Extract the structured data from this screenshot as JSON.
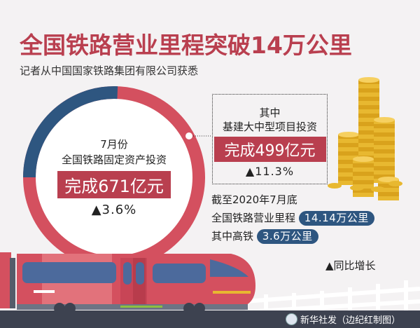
{
  "header": {
    "title": "全国铁路营业里程突破14万公里",
    "subtitle": "记者从中国国家铁路集团有限公司获悉"
  },
  "ring": {
    "line1": "7月份",
    "line2": "全国铁路固定资产投资",
    "value": "完成671亿元",
    "growth": "▲3.6%",
    "total": 671,
    "highlight_share": 499,
    "colors": {
      "main": "#d4505f",
      "share": "#2e5680"
    }
  },
  "callout": {
    "line1": "其中",
    "line2": "基建大中型项目投资",
    "value": "完成499亿元",
    "growth": "▲11.3%"
  },
  "mileage": {
    "line1": "截至2020年7月底",
    "line2_label": "全国铁路营业里程",
    "line2_value": "14.14万公里",
    "line3_label": "其中高铁",
    "line3_value": "3.6万公里"
  },
  "legend": "▲同比增长",
  "footer": {
    "credit": "新华社发（边纪红制图）"
  },
  "icons": {
    "coins": "gold-coins-icon",
    "train": "high-speed-train-icon",
    "logo": "xinhua-logo-icon"
  }
}
